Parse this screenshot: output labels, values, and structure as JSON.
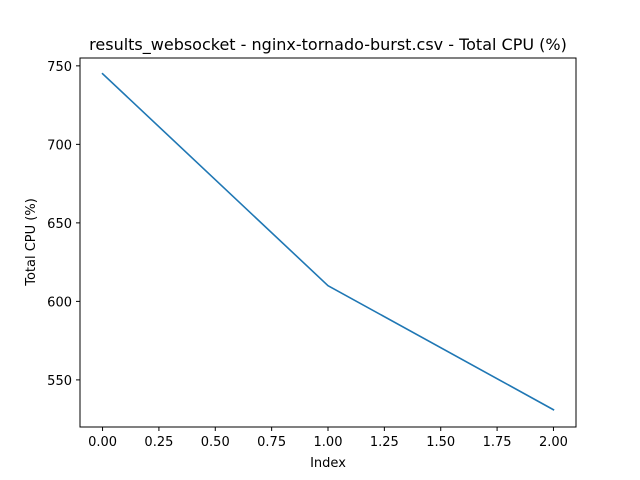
{
  "chart_data": {
    "type": "line",
    "title": "results_websocket - nginx-tornado-burst.csv - Total CPU (%)",
    "xlabel": "Index",
    "ylabel": "Total CPU (%)",
    "x": [
      0,
      1,
      2
    ],
    "series": [
      {
        "values": [
          745,
          610,
          531
        ],
        "color": "#1f77b4"
      }
    ],
    "xlim": [
      -0.1,
      2.1
    ],
    "ylim": [
      520,
      755
    ],
    "xticks": [
      0.0,
      0.25,
      0.5,
      0.75,
      1.0,
      1.25,
      1.5,
      1.75,
      2.0
    ],
    "xtick_labels": [
      "0.00",
      "0.25",
      "0.50",
      "0.75",
      "1.00",
      "1.25",
      "1.50",
      "1.75",
      "2.00"
    ],
    "yticks": [
      550,
      600,
      650,
      700,
      750
    ],
    "ytick_labels": [
      "550",
      "600",
      "650",
      "700",
      "750"
    ],
    "grid": false,
    "legend": "none"
  }
}
